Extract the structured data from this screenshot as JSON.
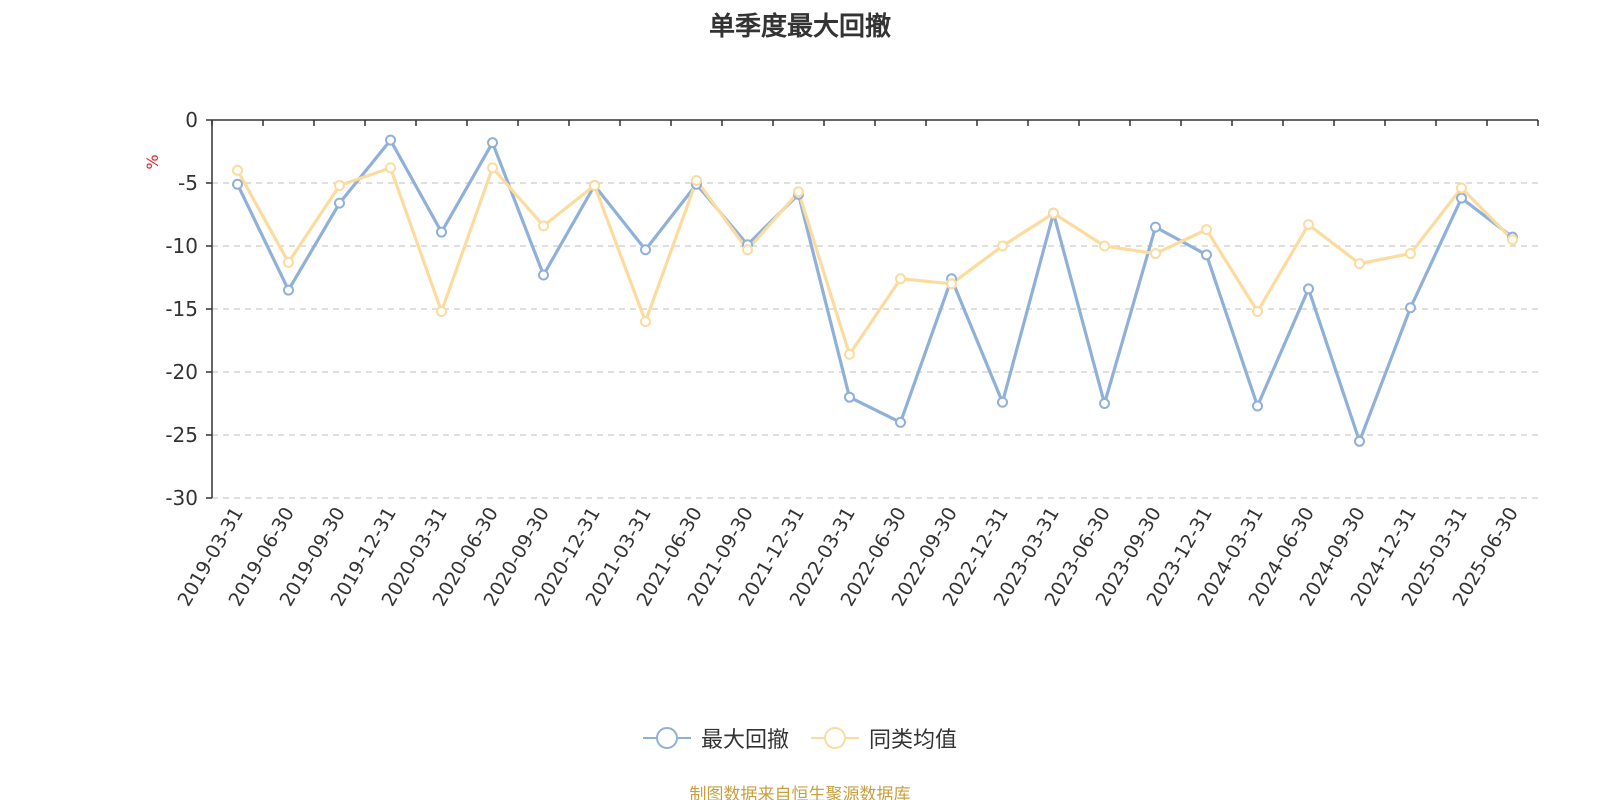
{
  "chart_data": {
    "type": "line",
    "title": "单季度最大回撤",
    "ylabel": "%",
    "ylim": [
      -30,
      0
    ],
    "yticks": [
      0,
      -5,
      -10,
      -15,
      -20,
      -25,
      -30
    ],
    "grid": true,
    "legend_position": "bottom-center",
    "categories": [
      "2019-03-31",
      "2019-06-30",
      "2019-09-30",
      "2019-12-31",
      "2020-03-31",
      "2020-06-30",
      "2020-09-30",
      "2020-12-31",
      "2021-03-31",
      "2021-06-30",
      "2021-09-30",
      "2021-12-31",
      "2022-03-31",
      "2022-06-30",
      "2022-09-30",
      "2022-12-31",
      "2023-03-31",
      "2023-06-30",
      "2023-09-30",
      "2023-12-31",
      "2024-03-31",
      "2024-06-30",
      "2024-09-30",
      "2024-12-31",
      "2025-03-31",
      "2025-06-30"
    ],
    "series": [
      {
        "name": "最大回撤",
        "color": "#8fb0d9",
        "values": [
          -5.1,
          -13.5,
          -6.6,
          -1.6,
          -8.9,
          -1.8,
          -12.3,
          -5.2,
          -10.3,
          -5.1,
          -9.9,
          -5.9,
          -22.0,
          -24.0,
          -12.6,
          -22.4,
          -7.4,
          -22.5,
          -8.5,
          -10.7,
          -22.7,
          -13.4,
          -25.5,
          -14.9,
          -6.2,
          -9.3
        ]
      },
      {
        "name": "同类均值",
        "color": "#fcdc9e",
        "values": [
          -4.0,
          -11.3,
          -5.2,
          -3.8,
          -15.2,
          -3.8,
          -8.4,
          -5.2,
          -16.0,
          -4.8,
          -10.3,
          -5.7,
          -18.6,
          -12.6,
          -13.0,
          -10.0,
          -7.4,
          -10.0,
          -10.6,
          -8.7,
          -15.2,
          -8.3,
          -11.4,
          -10.6,
          -5.4,
          -9.5
        ]
      }
    ]
  },
  "legend": {
    "items": [
      {
        "label": "最大回撤",
        "color": "#8fb0d9"
      },
      {
        "label": "同类均值",
        "color": "#fcdc9e"
      }
    ]
  },
  "footer": {
    "source": "制图数据来自恒生聚源数据库"
  }
}
